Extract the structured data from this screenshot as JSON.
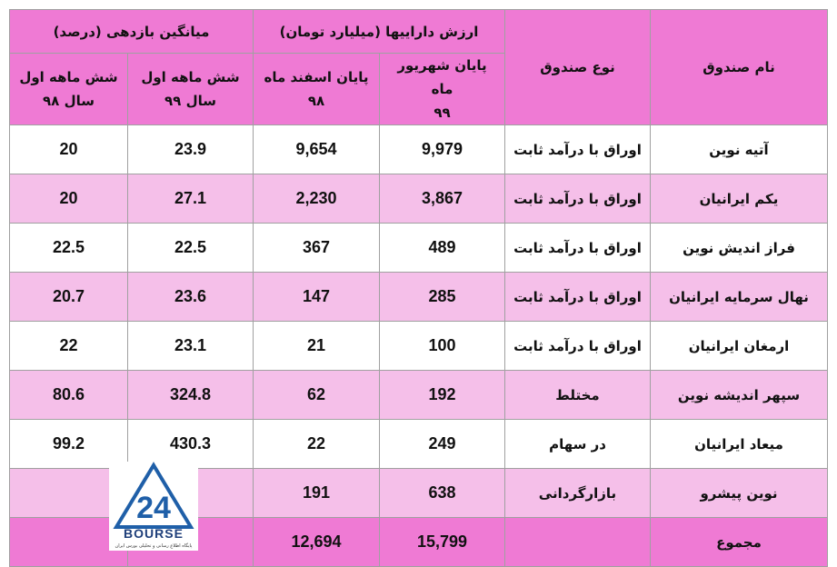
{
  "table": {
    "headers": {
      "name": "نام صندوق",
      "type": "نوع صندوق",
      "assets": "ارزش داراییها (میلیارد تومان)",
      "returns": "میانگین بازدهی (درصد)",
      "sub": [
        [
          "پایان شهریور ماه",
          "۹۹"
        ],
        [
          "پایان اسفند ماه",
          "۹۸"
        ],
        [
          "شش ماهه اول",
          "سال ۹۹"
        ],
        [
          "شش ماهه اول",
          "سال ۹۸"
        ]
      ]
    },
    "rows": [
      [
        "آتیه نوین",
        "اوراق با درآمد ثابت",
        "9,979",
        "9,654",
        "23.9",
        "20"
      ],
      [
        "یکم ایرانیان",
        "اوراق با درآمد ثابت",
        "3,867",
        "2,230",
        "27.1",
        "20"
      ],
      [
        "فراز اندیش نوین",
        "اوراق با درآمد ثابت",
        "489",
        "367",
        "22.5",
        "22.5"
      ],
      [
        "نهال سرمایه ایرانیان",
        "اوراق با درآمد ثابت",
        "285",
        "147",
        "23.6",
        "20.7"
      ],
      [
        "ارمغان ایرانیان",
        "اوراق با درآمد ثابت",
        "100",
        "21",
        "23.1",
        "22"
      ],
      [
        "سپهر اندیشه نوین",
        "مختلط",
        "192",
        "62",
        "324.8",
        "80.6"
      ],
      [
        "میعاد ایرانیان",
        "در سهام",
        "249",
        "22",
        "430.3",
        "99.2"
      ],
      [
        "نوین پیشرو",
        "بازارگردانی",
        "638",
        "191",
        null,
        null
      ]
    ],
    "total": [
      "مجموع",
      null,
      "15,799",
      "12,694",
      null,
      null
    ]
  },
  "logo": {
    "mark": "24",
    "name": "BOURSE",
    "caption": "پایگاه اطلاع رسانی و تحلیلی بورس ایران"
  }
}
